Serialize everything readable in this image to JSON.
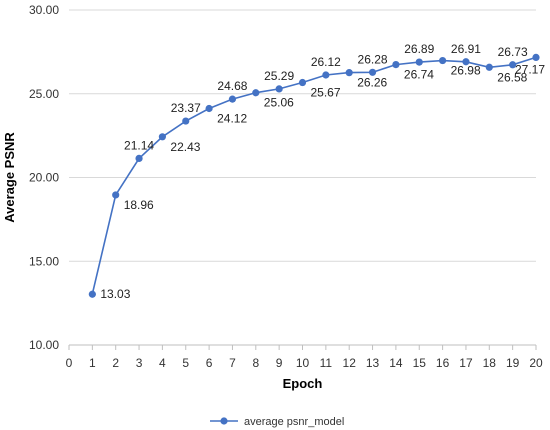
{
  "chart_data": {
    "type": "line",
    "title": "",
    "xlabel": "Epoch",
    "ylabel": "Average PSNR",
    "xlim": [
      0,
      20
    ],
    "ylim": [
      10,
      30
    ],
    "x_ticks": [
      0,
      1,
      2,
      3,
      4,
      5,
      6,
      7,
      8,
      9,
      10,
      11,
      12,
      13,
      14,
      15,
      16,
      17,
      18,
      19,
      20
    ],
    "y_ticks": [
      "10.00",
      "15.00",
      "20.00",
      "25.00",
      "30.00"
    ],
    "grid": "horizontal",
    "legend_position": "bottom",
    "series": [
      {
        "name": "average psnr_model",
        "color": "#4472C4",
        "x": [
          1,
          2,
          3,
          4,
          5,
          6,
          7,
          8,
          9,
          10,
          11,
          12,
          13,
          14,
          15,
          16,
          17,
          18,
          19,
          20
        ],
        "values": [
          13.03,
          18.96,
          21.14,
          22.43,
          23.37,
          24.12,
          24.68,
          25.06,
          25.29,
          25.67,
          26.12,
          26.26,
          26.28,
          26.74,
          26.89,
          26.98,
          26.91,
          26.58,
          26.73,
          27.17
        ],
        "labels": [
          "13.03",
          "18.96",
          "21.14",
          "22.43",
          "23.37",
          "24.12",
          "24.68",
          "25.06",
          "25.29",
          "25.67",
          "26.12",
          "26.26",
          "26.28",
          "26.74",
          "26.89",
          "26.98",
          "26.91",
          "26.58",
          "26.73",
          "27.17"
        ]
      }
    ]
  }
}
